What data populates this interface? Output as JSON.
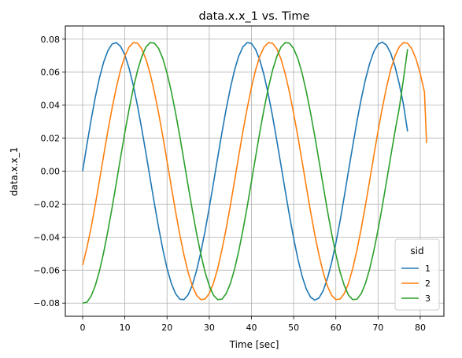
{
  "chart_data": {
    "type": "line",
    "title": "data.x.x_1 vs. Time",
    "xlabel": "Time [sec]",
    "ylabel": "data.x.x_1",
    "xlim": [
      -4.1,
      85.6
    ],
    "ylim": [
      -0.088,
      0.088
    ],
    "xticks": [
      0,
      10,
      20,
      30,
      40,
      50,
      60,
      70,
      80
    ],
    "xtick_labels": [
      "0",
      "10",
      "20",
      "30",
      "40",
      "50",
      "60",
      "70",
      "80"
    ],
    "yticks": [
      0.08,
      0.06,
      0.04,
      0.02,
      0.0,
      -0.02,
      -0.04,
      -0.06,
      -0.08
    ],
    "ytick_labels": [
      "0.08",
      "0.06",
      "0.04",
      "0.02",
      "0.00",
      "−0.02",
      "−0.04",
      "−0.06",
      "−0.08"
    ],
    "grid": true,
    "legend": {
      "title": "sid",
      "position": "lower-right"
    },
    "series": [
      {
        "name": "1",
        "color": "#1f77b4",
        "x": [
          0,
          1,
          2,
          3,
          4,
          5,
          6,
          7,
          8,
          9,
          10,
          11,
          12,
          13,
          14,
          15,
          16,
          17,
          18,
          19,
          20,
          21,
          22,
          23,
          24,
          25,
          26,
          27,
          28,
          29,
          30,
          31,
          32,
          33,
          34,
          35,
          36,
          37,
          38,
          39,
          40,
          41,
          42,
          43,
          44,
          45,
          46,
          47,
          48,
          49,
          50,
          51,
          52,
          53,
          54,
          55,
          56,
          57,
          58,
          59,
          60,
          61,
          62,
          63,
          64,
          65,
          66,
          67,
          68,
          69,
          70,
          71,
          72,
          73,
          74,
          75,
          76,
          77
        ],
        "y": [
          0,
          0.0158,
          0.0309,
          0.0448,
          0.0567,
          0.0662,
          0.0731,
          0.0771,
          0.0779,
          0.0756,
          0.0704,
          0.0624,
          0.052,
          0.0396,
          0.0257,
          0.0109,
          -0.0044,
          -0.0196,
          -0.0341,
          -0.0474,
          -0.0589,
          -0.0679,
          -0.0742,
          -0.0776,
          -0.0779,
          -0.075,
          -0.069,
          -0.0603,
          -0.0493,
          -0.0365,
          -0.0222,
          -0.0072,
          0.0082,
          0.0232,
          0.0375,
          0.0503,
          0.0613,
          0.0698,
          0.0754,
          0.0779,
          0.0774,
          0.0737,
          0.0672,
          0.058,
          0.0465,
          0.0333,
          0.0187,
          0.0035,
          -0.0118,
          -0.0268,
          -0.0407,
          -0.0532,
          -0.0636,
          -0.0715,
          -0.0764,
          -0.0782,
          -0.0769,
          -0.0725,
          -0.0651,
          -0.0554,
          -0.0436,
          -0.0302,
          -0.0153,
          0.0002,
          0.0153,
          0.0302,
          0.0436,
          0.0554,
          0.0651,
          0.0725,
          0.0769,
          0.0782,
          0.0764,
          0.0715,
          0.0636,
          0.0532,
          0.0407,
          0.024
        ]
      },
      {
        "name": "2",
        "color": "#ff7f0e",
        "x": [
          0,
          1,
          2,
          3,
          4,
          5,
          6,
          7,
          8,
          9,
          10,
          11,
          12,
          13,
          14,
          15,
          16,
          17,
          18,
          19,
          20,
          21,
          22,
          23,
          24,
          25,
          26,
          27,
          28,
          29,
          30,
          31,
          32,
          33,
          34,
          35,
          36,
          37,
          38,
          39,
          40,
          41,
          42,
          43,
          44,
          45,
          46,
          47,
          48,
          49,
          50,
          51,
          52,
          53,
          54,
          55,
          56,
          57,
          58,
          59,
          60,
          61,
          62,
          63,
          64,
          65,
          66,
          67,
          68,
          69,
          70,
          71,
          72,
          73,
          74,
          75,
          76,
          77,
          78,
          79,
          80,
          81
        ],
        "y": [
          -0.057,
          -0.0466,
          -0.0344,
          -0.0204,
          -0.0055,
          0.0097,
          0.0247,
          0.0384,
          0.0509,
          0.0615,
          0.0697,
          0.0752,
          0.0779,
          0.0776,
          0.0741,
          0.0679,
          0.0591,
          0.0479,
          0.0352,
          0.0211,
          0.0061,
          -0.0092,
          -0.0242,
          -0.0381,
          -0.0507,
          -0.0614,
          -0.0697,
          -0.0753,
          -0.0779,
          -0.0775,
          -0.0742,
          -0.0679,
          -0.0591,
          -0.0478,
          -0.035,
          -0.0209,
          -0.0059,
          0.0094,
          0.0244,
          0.0382,
          0.0508,
          0.0615,
          0.0697,
          0.0753,
          0.0779,
          0.0775,
          0.0742,
          0.068,
          0.059,
          0.0479,
          0.035,
          0.0209,
          0.0059,
          -0.0094,
          -0.0244,
          -0.0383,
          -0.0508,
          -0.0614,
          -0.0697,
          -0.0753,
          -0.0779,
          -0.0775,
          -0.0742,
          -0.068,
          -0.059,
          -0.0479,
          -0.0349,
          -0.0209,
          -0.0059,
          0.0094,
          0.0244,
          0.0382,
          0.0508,
          0.0615,
          0.0697,
          0.0753,
          0.0779,
          0.0775,
          0.0742,
          0.068,
          0.059,
          0.0479
        ],
        "x_tail": [
          81.5
        ],
        "y_tail": [
          0.017
        ]
      },
      {
        "name": "3",
        "color": "#2ca02c",
        "x": [
          0,
          1,
          2,
          3,
          4,
          5,
          6,
          7,
          8,
          9,
          10,
          11,
          12,
          13,
          14,
          15,
          16,
          17,
          18,
          19,
          20,
          21,
          22,
          23,
          24,
          25,
          26,
          27,
          28,
          29,
          30,
          31,
          32,
          33,
          34,
          35,
          36,
          37,
          38,
          39,
          40,
          41,
          42,
          43,
          44,
          45,
          46,
          47,
          48,
          49,
          50,
          51,
          52,
          53,
          54,
          55,
          56,
          57,
          58,
          59,
          60,
          61,
          62,
          63,
          64,
          65,
          66,
          67,
          68,
          69,
          70,
          71,
          72,
          73,
          74,
          75,
          76,
          77
        ],
        "y": [
          -0.08,
          -0.0795,
          -0.0758,
          -0.0694,
          -0.0604,
          -0.0491,
          -0.0361,
          -0.0219,
          -0.0068,
          0.0084,
          0.0234,
          0.0374,
          0.0501,
          0.0609,
          0.0694,
          0.0752,
          0.0779,
          0.0776,
          0.0744,
          0.0683,
          0.0594,
          0.0484,
          0.0356,
          0.0215,
          0.0064,
          -0.0088,
          -0.0238,
          -0.0378,
          -0.0503,
          -0.0611,
          -0.0694,
          -0.0752,
          -0.0779,
          -0.0776,
          -0.0743,
          -0.0682,
          -0.0594,
          -0.0483,
          -0.0355,
          -0.0214,
          -0.0063,
          0.0089,
          0.0239,
          0.0378,
          0.0504,
          0.0611,
          0.0694,
          0.0752,
          0.0779,
          0.0776,
          0.0743,
          0.0682,
          0.0594,
          0.0482,
          0.0354,
          0.0213,
          0.0063,
          -0.0089,
          -0.0239,
          -0.0378,
          -0.0504,
          -0.0611,
          -0.0694,
          -0.0752,
          -0.0779,
          -0.0776,
          -0.0743,
          -0.0682,
          -0.0594,
          -0.0483,
          -0.0355,
          -0.0214,
          -0.0063,
          0.0089,
          0.0239,
          0.0378,
          0.0554,
          0.074
        ]
      }
    ]
  }
}
